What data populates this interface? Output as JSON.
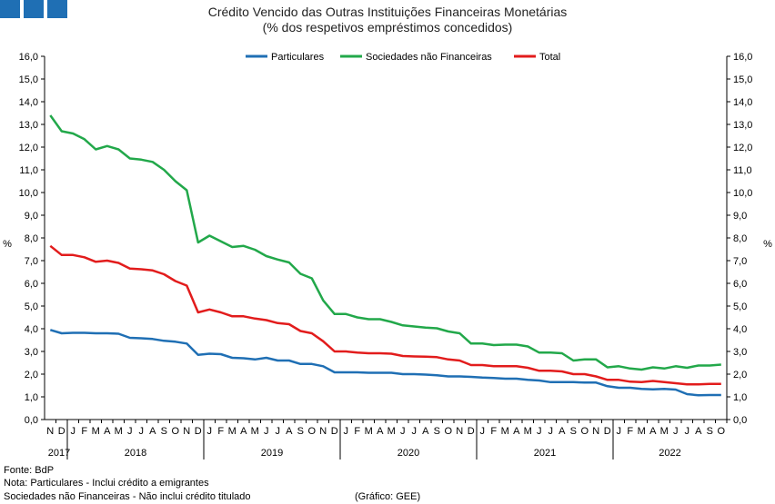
{
  "header": {
    "logo_icon": "three-blue-squares",
    "logo_color": "#1f6fb4",
    "title_line1": "Crédito Vencido das Outras Instituições Financeiras Monetárias",
    "title_line2": "(% dos respetivos empréstimos concedidos)"
  },
  "footer": {
    "source": "Fonte: BdP",
    "note1": "Nota: Particulares - Inclui crédito a emigrantes",
    "note2": "Sociedades não Financeiras - Não inclui crédito titulado",
    "credit": "(Gráfico: GEE)"
  },
  "chart_data": {
    "type": "line",
    "ylabel_left": "%",
    "ylabel_right": "%",
    "ylim": [
      0,
      16
    ],
    "ytick_step": 1,
    "ytick_labels": [
      "0,0",
      "1,0",
      "2,0",
      "3,0",
      "4,0",
      "5,0",
      "6,0",
      "7,0",
      "8,0",
      "9,0",
      "10,0",
      "11,0",
      "12,0",
      "13,0",
      "14,0",
      "15,0",
      "16,0"
    ],
    "grid": false,
    "legend_position": "top-center",
    "x_month_labels": [
      "N",
      "D",
      "J",
      "F",
      "M",
      "A",
      "M",
      "J",
      "J",
      "A",
      "S",
      "O",
      "N",
      "D",
      "J",
      "F",
      "M",
      "A",
      "M",
      "J",
      "J",
      "A",
      "S",
      "O",
      "N",
      "D",
      "J",
      "F",
      "M",
      "A",
      "M",
      "J",
      "J",
      "A",
      "S",
      "O",
      "N",
      "D",
      "J",
      "F",
      "M",
      "A",
      "M",
      "J",
      "J",
      "A",
      "S",
      "O",
      "N",
      "D",
      "J",
      "F",
      "M",
      "A",
      "M",
      "J",
      "J",
      "A",
      "S",
      "O"
    ],
    "x_year_labels": [
      {
        "label": "2017",
        "start": 0,
        "end": 1
      },
      {
        "label": "2018",
        "start": 2,
        "end": 13
      },
      {
        "label": "2019",
        "start": 14,
        "end": 25
      },
      {
        "label": "2020",
        "start": 26,
        "end": 37
      },
      {
        "label": "2021",
        "start": 38,
        "end": 49
      },
      {
        "label": "2022",
        "start": 50,
        "end": 59
      }
    ],
    "series": [
      {
        "name": "Particulares",
        "color": "#1f6fb4",
        "values": [
          3.95,
          3.8,
          3.82,
          3.82,
          3.8,
          3.8,
          3.78,
          3.6,
          3.58,
          3.55,
          3.47,
          3.43,
          3.35,
          2.85,
          2.9,
          2.88,
          2.72,
          2.7,
          2.65,
          2.72,
          2.6,
          2.6,
          2.45,
          2.45,
          2.35,
          2.08,
          2.08,
          2.08,
          2.06,
          2.06,
          2.06,
          2.0,
          2.0,
          1.98,
          1.95,
          1.9,
          1.9,
          1.88,
          1.85,
          1.83,
          1.8,
          1.8,
          1.75,
          1.72,
          1.65,
          1.65,
          1.65,
          1.63,
          1.63,
          1.47,
          1.4,
          1.4,
          1.35,
          1.33,
          1.35,
          1.32,
          1.12,
          1.07,
          1.08,
          1.08
        ]
      },
      {
        "name": "Sociedades não Financeiras",
        "color": "#22a84a",
        "values": [
          13.4,
          12.7,
          12.6,
          12.35,
          11.9,
          12.05,
          11.9,
          11.5,
          11.45,
          11.35,
          11.0,
          10.5,
          10.1,
          7.8,
          8.1,
          7.85,
          7.6,
          7.65,
          7.48,
          7.2,
          7.05,
          6.92,
          6.42,
          6.22,
          5.25,
          4.65,
          4.65,
          4.5,
          4.42,
          4.42,
          4.3,
          4.15,
          4.1,
          4.05,
          4.02,
          3.88,
          3.8,
          3.35,
          3.35,
          3.28,
          3.3,
          3.3,
          3.22,
          2.95,
          2.95,
          2.92,
          2.6,
          2.65,
          2.65,
          2.3,
          2.35,
          2.25,
          2.2,
          2.3,
          2.25,
          2.35,
          2.28,
          2.38,
          2.38,
          2.42
        ]
      },
      {
        "name": "Total",
        "color": "#e21c1c",
        "values": [
          7.65,
          7.25,
          7.25,
          7.15,
          6.95,
          7.0,
          6.9,
          6.65,
          6.62,
          6.57,
          6.4,
          6.1,
          5.9,
          4.72,
          4.85,
          4.72,
          4.55,
          4.55,
          4.45,
          4.38,
          4.25,
          4.2,
          3.9,
          3.8,
          3.45,
          3.0,
          3.0,
          2.95,
          2.92,
          2.92,
          2.9,
          2.8,
          2.78,
          2.77,
          2.75,
          2.65,
          2.6,
          2.4,
          2.4,
          2.35,
          2.35,
          2.35,
          2.28,
          2.15,
          2.15,
          2.12,
          2.0,
          2.0,
          1.9,
          1.75,
          1.75,
          1.67,
          1.65,
          1.7,
          1.65,
          1.6,
          1.55,
          1.55,
          1.57,
          1.57
        ]
      }
    ]
  }
}
